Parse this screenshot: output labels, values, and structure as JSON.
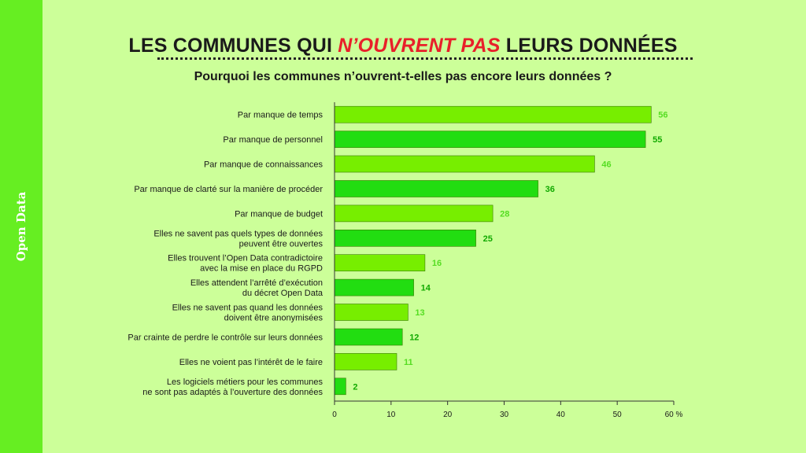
{
  "sidebar": {
    "label": "Open Data"
  },
  "header": {
    "title_before": "LES COMMUNES QUI ",
    "title_accent": "N’OUVRENT PAS",
    "title_after": " LEURS DONNÉES",
    "subtitle": "Pourquoi les communes n’ouvrent-t-elles pas encore leurs données ?"
  },
  "colors": {
    "background": "#ccff99",
    "sidebar": "#66ee22",
    "bar_light": "#77ee00",
    "bar_dark": "#22dd11",
    "label_light": "#55dd22",
    "label_dark": "#11aa00",
    "accent": "#e8202a"
  },
  "chart_data": {
    "type": "bar",
    "orientation": "horizontal",
    "title": "LES COMMUNES QUI N’OUVRENT PAS LEURS DONNÉES",
    "subtitle": "Pourquoi les communes n’ouvrent-t-elles pas encore leurs données ?",
    "categories": [
      [
        "Par manque de temps"
      ],
      [
        "Par manque de personnel"
      ],
      [
        "Par manque de connaissances"
      ],
      [
        "Par manque de clarté sur la manière de procéder"
      ],
      [
        "Par manque de budget"
      ],
      [
        "Elles ne savent pas quels types de données",
        "peuvent être ouvertes"
      ],
      [
        "Elles trouvent l’Open Data contradictoire",
        "avec la mise en place du RGPD"
      ],
      [
        "Elles attendent l’arrêté d’exécution",
        "du décret Open Data"
      ],
      [
        "Elles ne savent pas quand les données",
        "doivent être anonymisées"
      ],
      [
        "Par crainte de perdre  le contrôle sur leurs données"
      ],
      [
        "Elles ne voient pas l’intérêt de le faire"
      ],
      [
        "Les logiciels métiers pour les communes",
        "ne sont pas adaptés à l’ouverture des données"
      ]
    ],
    "values": [
      56,
      55,
      46,
      36,
      28,
      25,
      16,
      14,
      13,
      12,
      11,
      2
    ],
    "xlim": [
      0,
      60
    ],
    "xticks": [
      "0",
      "10",
      "20",
      "30",
      "40",
      "50",
      "60 %"
    ],
    "grid": false,
    "legend": "none"
  }
}
